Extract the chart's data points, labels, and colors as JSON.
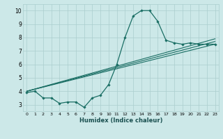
{
  "xlabel": "Humidex (Indice chaleur)",
  "bg_color": "#cce8e8",
  "grid_color": "#aacece",
  "line_color": "#1a6e64",
  "xlim": [
    -0.5,
    23.5
  ],
  "ylim": [
    2.5,
    10.5
  ],
  "xticks": [
    0,
    1,
    2,
    3,
    4,
    5,
    6,
    7,
    8,
    9,
    10,
    11,
    12,
    13,
    14,
    15,
    16,
    17,
    18,
    19,
    20,
    21,
    22,
    23
  ],
  "yticks": [
    3,
    4,
    5,
    6,
    7,
    8,
    9,
    10
  ],
  "line_main": {
    "x": [
      0,
      1,
      2,
      3,
      4,
      5,
      6,
      7,
      8,
      9,
      10,
      11,
      12,
      13,
      14,
      15,
      16,
      17,
      18,
      19,
      20,
      21,
      22,
      23
    ],
    "y": [
      3.9,
      4.0,
      3.5,
      3.5,
      3.1,
      3.2,
      3.2,
      2.8,
      3.5,
      3.7,
      4.5,
      6.0,
      8.0,
      9.6,
      10.0,
      10.0,
      9.2,
      7.8,
      7.6,
      7.5,
      7.6,
      7.5,
      7.5,
      7.5
    ]
  },
  "straight_lines": [
    {
      "x": [
        0,
        23
      ],
      "y": [
        4.0,
        7.5
      ]
    },
    {
      "x": [
        0,
        23
      ],
      "y": [
        4.0,
        7.7
      ]
    },
    {
      "x": [
        0,
        23
      ],
      "y": [
        4.0,
        7.9
      ]
    }
  ]
}
